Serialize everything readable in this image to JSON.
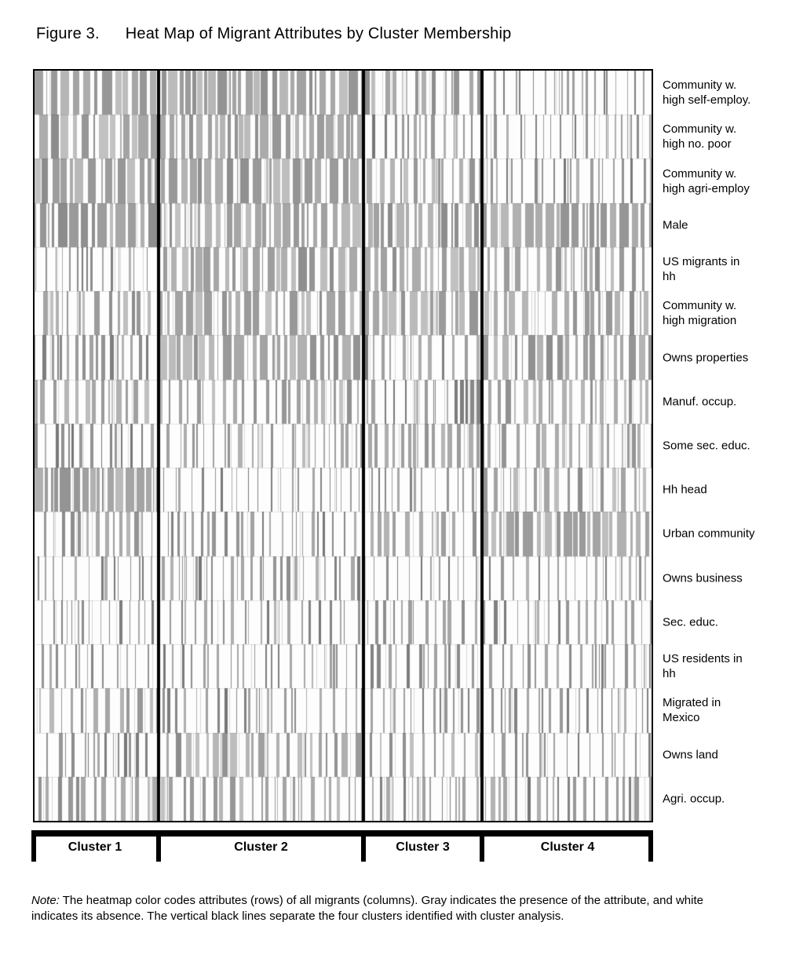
{
  "title": {
    "figure_label": "Figure 3.",
    "text": "Heat Map of Migrant Attributes by Cluster Membership"
  },
  "note": {
    "label": "Note:",
    "text": " The heatmap color codes attributes (rows) of all migrants (columns). Gray indicates the presence of the attribute, and white indicates its absence. The vertical black lines separate the four clusters identified with cluster analysis."
  },
  "chart_data": {
    "type": "heatmap",
    "title": "Heat Map of Migrant Attributes by Cluster Membership",
    "value_encoding": {
      "gray": "attribute present",
      "white": "attribute absent"
    },
    "colors": {
      "present_gray": "#a6a6a6",
      "absent_white": "#fdfdfd",
      "divider_black": "#000000",
      "border_black": "#000000"
    },
    "clusters": [
      {
        "label": "Cluster 1",
        "width_frac": 0.201
      },
      {
        "label": "Cluster 2",
        "width_frac": 0.332
      },
      {
        "label": "Cluster 3",
        "width_frac": 0.192
      },
      {
        "label": "Cluster 4",
        "width_frac": 0.275
      }
    ],
    "rows": [
      {
        "label": "Community w. high self-employ.",
        "lines": [
          "Community w.",
          "high self-employ."
        ],
        "gray_density_by_cluster": [
          0.72,
          0.75,
          0.33,
          0.12
        ]
      },
      {
        "label": "Community w. high no. poor",
        "lines": [
          "Community w.",
          "high no. poor"
        ],
        "gray_density_by_cluster": [
          0.76,
          0.7,
          0.25,
          0.1
        ]
      },
      {
        "label": "Community w. high agri-employ",
        "lines": [
          "Community w.",
          "high agri-employ"
        ],
        "gray_density_by_cluster": [
          0.7,
          0.66,
          0.4,
          0.13
        ]
      },
      {
        "label": "Male",
        "lines": [
          "Male"
        ],
        "gray_density_by_cluster": [
          0.78,
          0.72,
          0.55,
          0.75
        ]
      },
      {
        "label": "US migrants in hh",
        "lines": [
          "US migrants in",
          "hh"
        ],
        "gray_density_by_cluster": [
          0.08,
          0.65,
          0.65,
          0.42
        ]
      },
      {
        "label": "Community w. high migration",
        "lines": [
          "Community w.",
          "high migration"
        ],
        "gray_density_by_cluster": [
          0.33,
          0.6,
          0.6,
          0.45
        ]
      },
      {
        "label": "Owns properties",
        "lines": [
          "Owns properties"
        ],
        "gray_density_by_cluster": [
          0.25,
          0.75,
          0.25,
          0.55
        ]
      },
      {
        "label": "Manuf. occup.",
        "lines": [
          "Manuf. occup."
        ],
        "gray_density_by_cluster": [
          0.35,
          0.3,
          0.25,
          0.3
        ]
      },
      {
        "label": "Some sec. educ.",
        "lines": [
          "Some sec. educ."
        ],
        "gray_density_by_cluster": [
          0.2,
          0.3,
          0.3,
          0.3
        ]
      },
      {
        "label": "Hh head",
        "lines": [
          "Hh head"
        ],
        "gray_density_by_cluster": [
          0.8,
          0.05,
          0.12,
          0.35
        ]
      },
      {
        "label": "Urban community",
        "lines": [
          "Urban community"
        ],
        "gray_density_by_cluster": [
          0.3,
          0.2,
          0.35,
          0.75
        ]
      },
      {
        "label": "Owns business",
        "lines": [
          "Owns business"
        ],
        "gray_density_by_cluster": [
          0.1,
          0.18,
          0.12,
          0.15
        ]
      },
      {
        "label": "Sec. educ.",
        "lines": [
          "Sec. educ."
        ],
        "gray_density_by_cluster": [
          0.12,
          0.15,
          0.2,
          0.2
        ]
      },
      {
        "label": "US residents in hh",
        "lines": [
          "US residents in",
          "hh"
        ],
        "gray_density_by_cluster": [
          0.1,
          0.12,
          0.2,
          0.12
        ]
      },
      {
        "label": "Migrated in Mexico",
        "lines": [
          "Migrated in",
          "Mexico"
        ],
        "gray_density_by_cluster": [
          0.3,
          0.12,
          0.15,
          0.12
        ]
      },
      {
        "label": "Owns land",
        "lines": [
          "Owns land"
        ],
        "gray_density_by_cluster": [
          0.2,
          0.45,
          0.3,
          0.15
        ]
      },
      {
        "label": "Agri. occup.",
        "lines": [
          "Agri. occup."
        ],
        "gray_density_by_cluster": [
          0.35,
          0.3,
          0.2,
          0.25
        ]
      }
    ]
  }
}
